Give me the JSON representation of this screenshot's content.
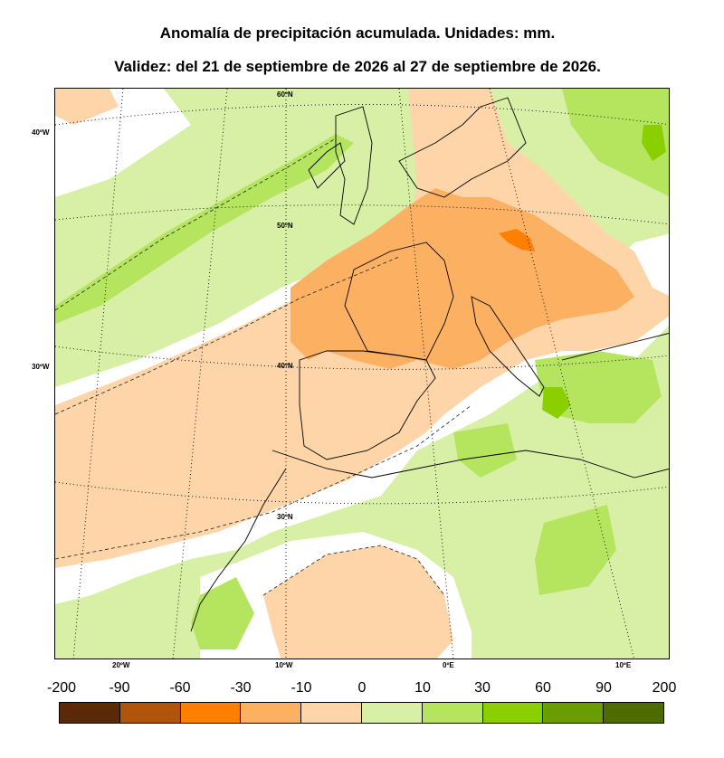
{
  "title": "Anomalía de precipitación acumulada. Unidades: mm.",
  "subtitle": "Validez: del 21 de septiembre de 2026 al 27 de septiembre de 2026.",
  "map": {
    "lat_labels": [
      "60ºN",
      "50ºN",
      "40ºN",
      "30ºN"
    ],
    "lon_labels_left": [
      "40ºW",
      "30ºW"
    ],
    "lon_labels_bottom": [
      "20ºW",
      "10ºW",
      "0ºE",
      "10ºE"
    ]
  },
  "legend": {
    "ticks": [
      "-200",
      "-90",
      "-60",
      "-30",
      "-10",
      "0",
      "10",
      "30",
      "60",
      "90",
      "200"
    ],
    "colors": [
      "#5a2a08",
      "#b0540c",
      "#ff7f00",
      "#fcb062",
      "#fdd5a8",
      "#d8f0a6",
      "#b5e45e",
      "#8ccf00",
      "#6a9e00",
      "#4e6b00"
    ]
  }
}
